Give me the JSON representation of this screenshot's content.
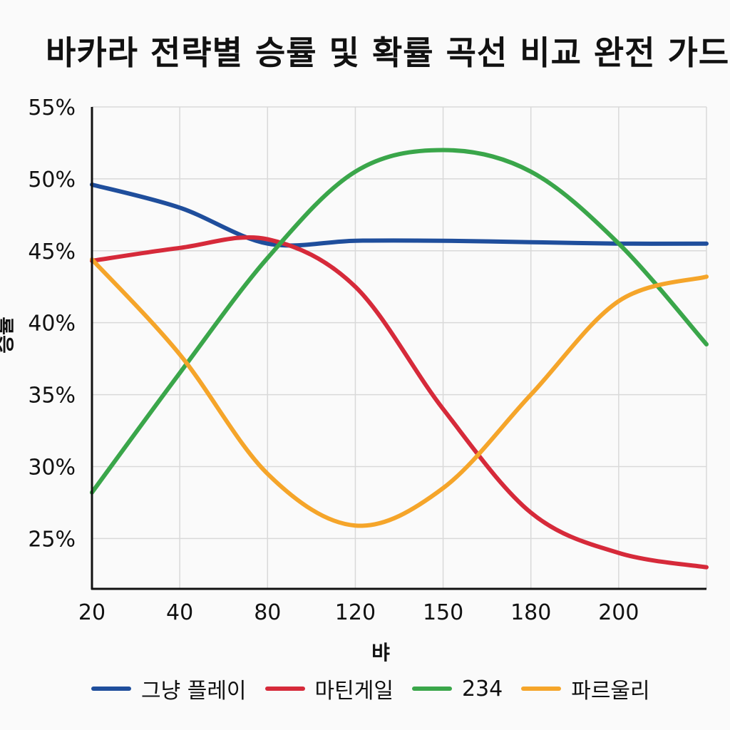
{
  "chart_data": {
    "type": "line",
    "title": "바카라 전략별 승률 및 확률 곡선 비교 완전 가드",
    "xlabel": "뱌",
    "ylabel": "승률",
    "x": [
      20,
      40,
      80,
      120,
      150,
      180,
      200,
      220
    ],
    "x_tick_labels": [
      "20",
      "40",
      "80",
      "120",
      "150",
      "180",
      "200"
    ],
    "y_ticks": [
      25,
      30,
      35,
      40,
      45,
      50,
      55
    ],
    "y_tick_labels": [
      "25%",
      "30%",
      "35%",
      "40%",
      "45%",
      "50%",
      "55%"
    ],
    "ylim": [
      21.5,
      55
    ],
    "grid": true,
    "legend_position": "bottom",
    "series": [
      {
        "name": "그냥 플레이",
        "color": "#1f4e9c",
        "values": [
          49.6,
          48.0,
          45.5,
          45.7,
          45.7,
          45.6,
          45.5,
          45.5
        ]
      },
      {
        "name": "마틴게일",
        "color": "#d62a3a",
        "values": [
          44.3,
          45.2,
          45.8,
          42.5,
          34.0,
          26.8,
          24.0,
          23.0
        ]
      },
      {
        "name": "234",
        "color": "#3aa64a",
        "values": [
          28.2,
          36.5,
          44.5,
          50.5,
          52.0,
          50.5,
          45.5,
          38.5
        ]
      },
      {
        "name": "파르울리",
        "color": "#f5a52a",
        "values": [
          44.4,
          37.8,
          29.5,
          25.9,
          28.5,
          35.0,
          41.5,
          43.2
        ]
      }
    ]
  }
}
